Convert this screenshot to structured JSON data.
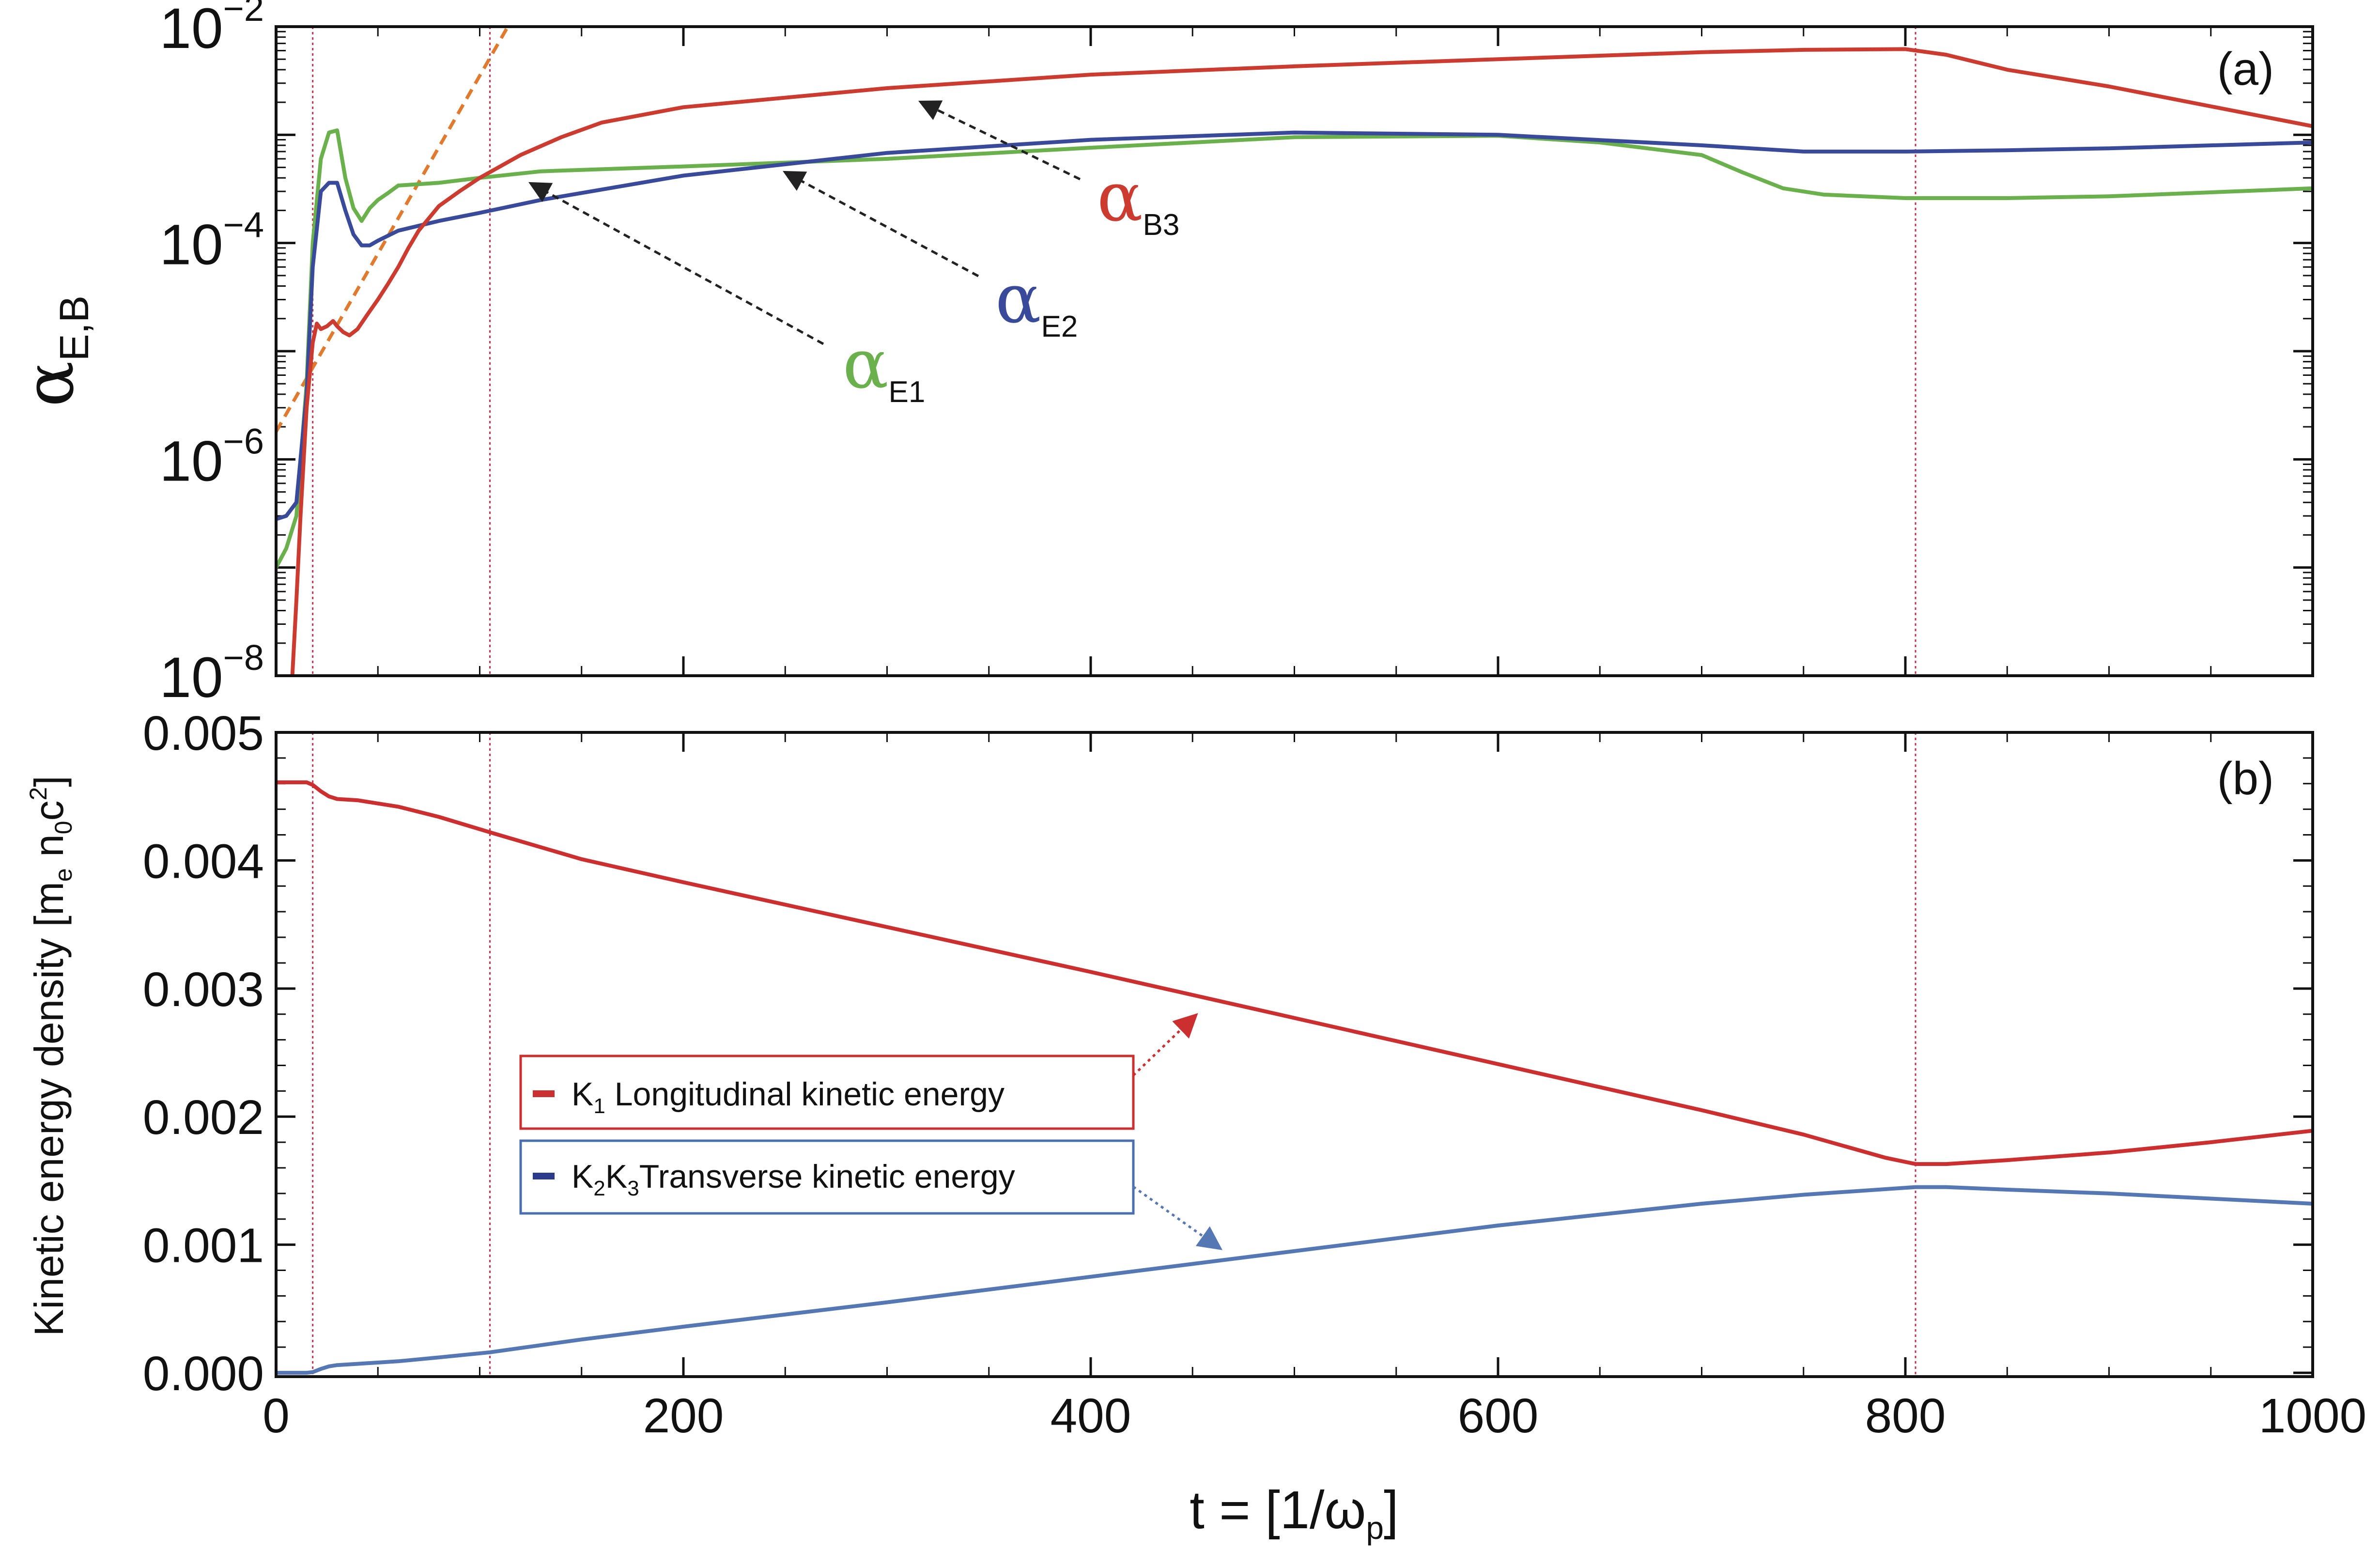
{
  "chart_data": [
    {
      "panel_tag": "(a)",
      "type": "line",
      "yscale": "log",
      "ylabel_main": "α",
      "ylabel_sub": "E,B",
      "xlim": [
        0,
        1000
      ],
      "ylim": [
        1e-08,
        0.01
      ],
      "yticks": [
        {
          "value": 1e-08,
          "base": "10",
          "exp": "−8"
        },
        {
          "value": 1e-06,
          "base": "10",
          "exp": "−6"
        },
        {
          "value": 0.0001,
          "base": "10",
          "exp": "−4"
        },
        {
          "value": 0.01,
          "base": "10",
          "exp": "−2"
        }
      ],
      "vlines": [
        18,
        105,
        805
      ],
      "fit_line": {
        "color": "#e07a2e",
        "x": [
          0,
          120
        ],
        "y": [
          1.8e-06,
          0.016
        ]
      },
      "series": [
        {
          "name_main": "α",
          "name_sub": "E1",
          "color": "#6ab04c",
          "x": [
            0,
            5,
            10,
            15,
            18,
            22,
            26,
            30,
            34,
            38,
            42,
            46,
            50,
            55,
            60,
            70,
            80,
            100,
            130,
            200,
            300,
            400,
            500,
            600,
            650,
            700,
            720,
            740,
            760,
            800,
            850,
            900,
            1000
          ],
          "y": [
            1e-07,
            1.5e-07,
            3e-07,
            5e-06,
            0.0001,
            0.0006,
            0.00105,
            0.0011,
            0.0004,
            0.00021,
            0.00016,
            0.00021,
            0.00025,
            0.00029,
            0.00034,
            0.00035,
            0.00036,
            0.0004,
            0.00046,
            0.00051,
            0.0006,
            0.00076,
            0.00095,
            0.00098,
            0.00085,
            0.00065,
            0.00045,
            0.00032,
            0.00028,
            0.00026,
            0.00026,
            0.00027,
            0.00032
          ]
        },
        {
          "name_main": "α",
          "name_sub": "E2",
          "color": "#3a4a9a",
          "x": [
            0,
            5,
            10,
            15,
            18,
            22,
            26,
            30,
            34,
            38,
            42,
            46,
            50,
            60,
            80,
            100,
            130,
            200,
            300,
            400,
            500,
            600,
            700,
            750,
            800,
            850,
            900,
            1000
          ],
          "y": [
            2.8e-07,
            3e-07,
            4e-07,
            4e-06,
            6e-05,
            0.0003,
            0.00036,
            0.00036,
            0.0002,
            0.00012,
            9.5e-05,
            9.5e-05,
            0.000105,
            0.00013,
            0.00016,
            0.00019,
            0.00025,
            0.00042,
            0.00068,
            0.0009,
            0.00105,
            0.001,
            0.0008,
            0.0007,
            0.0007,
            0.00072,
            0.00075,
            0.00085
          ]
        },
        {
          "name_main": "α",
          "name_sub": "B3",
          "color": "#cc3b30",
          "x": [
            8,
            10,
            12,
            15,
            18,
            20,
            22,
            25,
            28,
            30,
            33,
            36,
            40,
            45,
            50,
            55,
            60,
            65,
            70,
            80,
            90,
            100,
            120,
            140,
            160,
            200,
            300,
            400,
            500,
            600,
            700,
            750,
            800,
            820,
            850,
            900,
            1000
          ],
          "y": [
            1e-08,
            5e-08,
            3e-07,
            3e-06,
            1.2e-05,
            1.8e-05,
            1.6e-05,
            1.7e-05,
            1.9e-05,
            1.7e-05,
            1.5e-05,
            1.4e-05,
            1.6e-05,
            2.2e-05,
            3e-05,
            4.2e-05,
            6e-05,
            9e-05,
            0.00013,
            0.00022,
            0.0003,
            0.0004,
            0.00065,
            0.00095,
            0.0013,
            0.0018,
            0.0027,
            0.0036,
            0.0043,
            0.005,
            0.0058,
            0.0061,
            0.0062,
            0.0055,
            0.004,
            0.0028,
            0.0012
          ]
        }
      ]
    },
    {
      "panel_tag": "(b)",
      "type": "line",
      "yscale": "linear",
      "ylabel_main": "Kinetic energy density [m",
      "ylabel_e": "e",
      "ylabel_n": " n",
      "ylabel_0": "0",
      "ylabel_c": "c",
      "ylabel_2": "2",
      "ylabel_close": "]",
      "xlabel": "t = [1/ω",
      "xlabel_sub": "p",
      "xlabel_close": "]",
      "xlim": [
        0,
        1000
      ],
      "ylim": [
        -3e-05,
        0.005
      ],
      "xticks": [
        {
          "value": 0,
          "label": "0"
        },
        {
          "value": 200,
          "label": "200"
        },
        {
          "value": 400,
          "label": "400"
        },
        {
          "value": 600,
          "label": "600"
        },
        {
          "value": 800,
          "label": "800"
        },
        {
          "value": 1000,
          "label": "1000"
        }
      ],
      "yticks": [
        {
          "value": 0.0,
          "label": "0.000"
        },
        {
          "value": 0.001,
          "label": "0.001"
        },
        {
          "value": 0.002,
          "label": "0.002"
        },
        {
          "value": 0.003,
          "label": "0.003"
        },
        {
          "value": 0.004,
          "label": "0.004"
        },
        {
          "value": 0.005,
          "label": "0.005"
        }
      ],
      "vlines": [
        18,
        105,
        805
      ],
      "series": [
        {
          "legend_sym": "K",
          "legend_sub": "1",
          "legend_text": " Longitudinal kinetic energy",
          "color": "#cc2f2f",
          "legend_dash_color": "#cc2f2f",
          "box_color": "#cc2f2f",
          "x": [
            0,
            10,
            15,
            18,
            22,
            26,
            30,
            40,
            60,
            80,
            105,
            150,
            200,
            300,
            400,
            500,
            600,
            700,
            750,
            790,
            805,
            820,
            850,
            900,
            950,
            1000
          ],
          "y": [
            0.00461,
            0.00461,
            0.00461,
            0.00459,
            0.00454,
            0.0045,
            0.00448,
            0.00447,
            0.00442,
            0.00434,
            0.00422,
            0.00401,
            0.00383,
            0.00348,
            0.00313,
            0.00277,
            0.00241,
            0.00205,
            0.00186,
            0.00168,
            0.00163,
            0.00163,
            0.00166,
            0.00172,
            0.0018,
            0.00189
          ]
        },
        {
          "legend_sym": "K",
          "legend_sub": "2",
          "legend_sym2": "K",
          "legend_sub2": "3",
          "legend_text": "Transverse kinetic energy",
          "color": "#5578b5",
          "legend_dash_color": "#2c3a8c",
          "box_color": "#4a6fae",
          "x": [
            0,
            10,
            15,
            18,
            22,
            26,
            30,
            40,
            60,
            80,
            105,
            150,
            200,
            300,
            400,
            500,
            600,
            700,
            750,
            805,
            820,
            850,
            900,
            950,
            1000
          ],
          "y": [
            0.0,
            0.0,
            0.0,
            5e-06,
            3e-05,
            5e-05,
            6e-05,
            7e-05,
            9e-05,
            0.00012,
            0.00016,
            0.00026,
            0.00036,
            0.00055,
            0.00075,
            0.00095,
            0.00115,
            0.00132,
            0.00139,
            0.00145,
            0.00145,
            0.00143,
            0.0014,
            0.00136,
            0.00132
          ]
        }
      ]
    }
  ]
}
